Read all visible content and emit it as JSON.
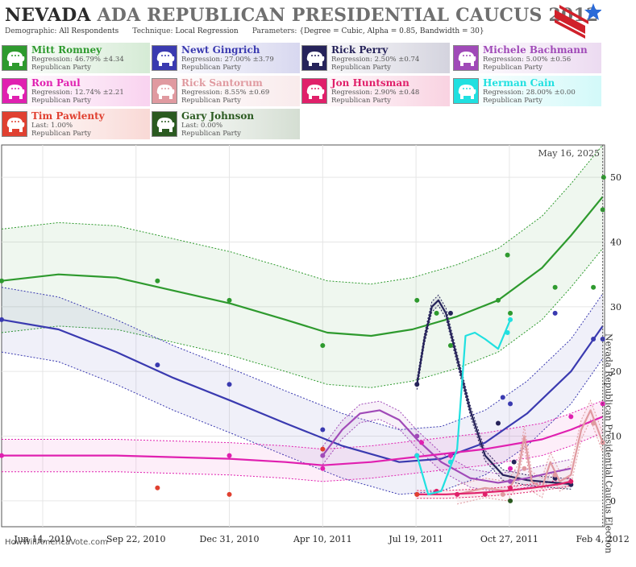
{
  "header": {
    "title_state": "NEVADA",
    "title_rest": "ADA REPUBLICAN PRESIDENTIAL CAUCUS 2012",
    "demographic_label": "Demographic:",
    "demographic_value": "All Respondents",
    "technique_label": "Technique:",
    "technique_value": "Local Regression",
    "parameters_label": "Parameters:",
    "parameters_value": "{Degree = Cubic, Alpha = 0.85, Bandwidth = 30}"
  },
  "candidates": [
    {
      "name": "Mitt Romney",
      "stat": "Regression: 46.79% ±4.34",
      "party": "Republican Party",
      "color": "#2e9a2e"
    },
    {
      "name": "Newt Gingrich",
      "stat": "Regression: 27.00% ±3.79",
      "party": "Republican Party",
      "color": "#3a3ab0"
    },
    {
      "name": "Rick Perry",
      "stat": "Regression: 2.50% ±0.74",
      "party": "Republican Party",
      "color": "#26235a"
    },
    {
      "name": "Michele Bachmann",
      "stat": "Regression: 5.00% ±0.56",
      "party": "Republican Party",
      "color": "#a04ab8"
    },
    {
      "name": "Ron Paul",
      "stat": "Regression: 12.74% ±2.21",
      "party": "Republican Party",
      "color": "#e020b0"
    },
    {
      "name": "Rick Santorum",
      "stat": "Regression: 8.55% ±0.69",
      "party": "Republican Party",
      "color": "#e09aa0"
    },
    {
      "name": "Jon Huntsman",
      "stat": "Regression: 2.90% ±0.48",
      "party": "Republican Party",
      "color": "#e0206a"
    },
    {
      "name": "Herman Cain",
      "stat": "Regression: 28.00% ±0.00",
      "party": "Republican Party",
      "color": "#20e0e0"
    },
    {
      "name": "Tim Pawlenty",
      "stat": "Last: 1.00%",
      "party": "Republican Party",
      "color": "#e04030"
    },
    {
      "name": "Gary Johnson",
      "stat": "Last: 0.00%",
      "party": "Republican Party",
      "color": "#2a5a20"
    }
  ],
  "watermark": "HowWillAmericaVote.com",
  "chart_data": {
    "type": "line",
    "today_label": "May 16, 2025",
    "event_label": "Nevada Republican Presidential Caucus Election",
    "event_date": "2012-02-04",
    "x_range": [
      "2010-05-01",
      "2012-02-06"
    ],
    "ylim": [
      -4,
      55
    ],
    "yticks": [
      0,
      10,
      20,
      30,
      40,
      50
    ],
    "xticks": [
      {
        "date": "2010-06-14",
        "label": "Jun 14, 2010"
      },
      {
        "date": "2010-09-22",
        "label": "Sep 22, 2010"
      },
      {
        "date": "2010-12-31",
        "label": "Dec 31, 2010"
      },
      {
        "date": "2011-04-10",
        "label": "Apr 10, 2011"
      },
      {
        "date": "2011-07-19",
        "label": "Jul 19, 2011"
      },
      {
        "date": "2011-10-27",
        "label": "Oct 27, 2011"
      },
      {
        "date": "2012-02-04",
        "label": "Feb 4, 2012"
      }
    ],
    "series": [
      {
        "name": "Mitt Romney",
        "color": "#2e9a2e",
        "band": 8,
        "line": [
          [
            "2010-05-01",
            34
          ],
          [
            "2010-07-01",
            35
          ],
          [
            "2010-09-01",
            34.5
          ],
          [
            "2010-11-01",
            32.5
          ],
          [
            "2011-01-01",
            30.5
          ],
          [
            "2011-03-01",
            28
          ],
          [
            "2011-04-15",
            26
          ],
          [
            "2011-06-01",
            25.5
          ],
          [
            "2011-07-15",
            26.5
          ],
          [
            "2011-09-01",
            28.5
          ],
          [
            "2011-10-15",
            31
          ],
          [
            "2011-12-01",
            36
          ],
          [
            "2012-01-01",
            41
          ],
          [
            "2012-02-04",
            47
          ]
        ],
        "points": [
          [
            "2010-05-01",
            34
          ],
          [
            "2010-10-15",
            34
          ],
          [
            "2010-12-31",
            31
          ],
          [
            "2011-04-10",
            24
          ],
          [
            "2011-07-20",
            31
          ],
          [
            "2011-08-10",
            29
          ],
          [
            "2011-08-25",
            24
          ],
          [
            "2011-10-15",
            31
          ],
          [
            "2011-10-25",
            38
          ],
          [
            "2011-10-28",
            29
          ],
          [
            "2011-12-15",
            33
          ],
          [
            "2012-01-25",
            33
          ],
          [
            "2012-02-04",
            45
          ],
          [
            "2012-02-05",
            50
          ]
        ]
      },
      {
        "name": "Newt Gingrich",
        "color": "#3a3ab0",
        "band": 5,
        "line": [
          [
            "2010-05-01",
            28
          ],
          [
            "2010-07-01",
            26.5
          ],
          [
            "2010-09-01",
            23
          ],
          [
            "2010-11-01",
            19
          ],
          [
            "2011-01-01",
            15.5
          ],
          [
            "2011-03-01",
            12
          ],
          [
            "2011-05-01",
            8.5
          ],
          [
            "2011-07-01",
            6
          ],
          [
            "2011-08-15",
            6.5
          ],
          [
            "2011-10-01",
            9
          ],
          [
            "2011-11-15",
            13.5
          ],
          [
            "2012-01-01",
            20
          ],
          [
            "2012-02-04",
            27
          ]
        ],
        "points": [
          [
            "2010-05-01",
            28
          ],
          [
            "2010-10-15",
            21
          ],
          [
            "2010-12-31",
            18
          ],
          [
            "2011-04-10",
            11
          ],
          [
            "2011-07-20",
            7
          ],
          [
            "2011-10-20",
            16
          ],
          [
            "2011-10-28",
            15
          ],
          [
            "2011-12-15",
            29
          ],
          [
            "2012-01-25",
            25
          ],
          [
            "2012-02-04",
            25
          ]
        ]
      },
      {
        "name": "Rick Perry",
        "color": "#26235a",
        "band": 0.8,
        "line": [
          [
            "2011-07-20",
            18
          ],
          [
            "2011-07-28",
            25
          ],
          [
            "2011-08-05",
            30
          ],
          [
            "2011-08-12",
            31
          ],
          [
            "2011-08-20",
            29
          ],
          [
            "2011-09-01",
            22
          ],
          [
            "2011-09-15",
            14
          ],
          [
            "2011-10-01",
            7
          ],
          [
            "2011-10-20",
            4
          ],
          [
            "2011-11-15",
            3.2
          ],
          [
            "2011-12-15",
            2.8
          ],
          [
            "2012-01-01",
            2.6
          ]
        ],
        "points": [
          [
            "2011-07-20",
            18
          ],
          [
            "2011-08-25",
            29
          ],
          [
            "2011-10-15",
            12
          ],
          [
            "2011-11-01",
            6
          ],
          [
            "2011-12-15",
            3.5
          ],
          [
            "2012-01-01",
            2.5
          ]
        ]
      },
      {
        "name": "Michele Bachmann",
        "color": "#a04ab8",
        "band": 1.4,
        "line": [
          [
            "2011-04-10",
            7
          ],
          [
            "2011-05-01",
            11
          ],
          [
            "2011-05-20",
            13.5
          ],
          [
            "2011-06-10",
            14
          ],
          [
            "2011-07-01",
            12.5
          ],
          [
            "2011-07-20",
            9.5
          ],
          [
            "2011-08-15",
            6
          ],
          [
            "2011-09-15",
            3.5
          ],
          [
            "2011-10-15",
            2.8
          ],
          [
            "2011-11-15",
            3.5
          ],
          [
            "2011-12-15",
            4.5
          ],
          [
            "2012-01-01",
            5
          ]
        ],
        "points": [
          [
            "2011-04-10",
            7
          ],
          [
            "2011-07-20",
            10
          ],
          [
            "2011-08-25",
            6
          ],
          [
            "2011-10-28",
            3
          ],
          [
            "2011-12-15",
            4
          ]
        ]
      },
      {
        "name": "Ron Paul",
        "color": "#e020b0",
        "band": 2.5,
        "line": [
          [
            "2010-05-01",
            7
          ],
          [
            "2010-09-01",
            7
          ],
          [
            "2010-12-31",
            6.5
          ],
          [
            "2011-03-01",
            6
          ],
          [
            "2011-04-10",
            5.5
          ],
          [
            "2011-06-01",
            6
          ],
          [
            "2011-08-01",
            7
          ],
          [
            "2011-10-01",
            8
          ],
          [
            "2011-12-01",
            9.5
          ],
          [
            "2012-01-01",
            11
          ],
          [
            "2012-02-04",
            13
          ]
        ],
        "points": [
          [
            "2010-05-01",
            7
          ],
          [
            "2010-12-31",
            7
          ],
          [
            "2011-04-10",
            5
          ],
          [
            "2011-07-20",
            7
          ],
          [
            "2011-07-25",
            9
          ],
          [
            "2011-08-25",
            7
          ],
          [
            "2011-10-28",
            5
          ],
          [
            "2012-01-01",
            13
          ],
          [
            "2012-02-04",
            15
          ]
        ]
      },
      {
        "name": "Rick Santorum",
        "color": "#e09aa0",
        "band": 1.5,
        "line": [
          [
            "2011-09-01",
            1
          ],
          [
            "2011-10-01",
            2
          ],
          [
            "2011-10-25",
            1.5
          ],
          [
            "2011-11-05",
            4
          ],
          [
            "2011-11-12",
            10
          ],
          [
            "2011-11-20",
            3
          ],
          [
            "2011-12-01",
            2
          ],
          [
            "2011-12-10",
            6
          ],
          [
            "2011-12-20",
            3
          ],
          [
            "2012-01-01",
            4
          ],
          [
            "2012-01-12",
            11
          ],
          [
            "2012-01-22",
            14
          ],
          [
            "2012-02-04",
            9
          ]
        ],
        "points": [
          [
            "2011-09-01",
            1
          ],
          [
            "2011-10-20",
            1
          ],
          [
            "2011-11-12",
            5
          ],
          [
            "2011-12-15",
            4
          ],
          [
            "2012-01-25",
            12
          ],
          [
            "2012-02-04",
            9
          ]
        ]
      },
      {
        "name": "Jon Huntsman",
        "color": "#e0206a",
        "band": 0.6,
        "line": [
          [
            "2011-07-20",
            1
          ],
          [
            "2011-08-20",
            1
          ],
          [
            "2011-09-20",
            1.2
          ],
          [
            "2011-10-20",
            1.5
          ],
          [
            "2011-11-20",
            2
          ],
          [
            "2011-12-20",
            2.6
          ],
          [
            "2012-01-01",
            3
          ]
        ],
        "points": [
          [
            "2011-07-20",
            1
          ],
          [
            "2011-08-10",
            1.5
          ],
          [
            "2011-09-01",
            1
          ],
          [
            "2011-10-01",
            1
          ],
          [
            "2011-10-28",
            2
          ],
          [
            "2012-01-01",
            3
          ]
        ]
      },
      {
        "name": "Herman Cain",
        "color": "#20e0e0",
        "band": 0,
        "line": [
          [
            "2011-07-20",
            7
          ],
          [
            "2011-08-01",
            1
          ],
          [
            "2011-08-15",
            1.5
          ],
          [
            "2011-09-01",
            8
          ],
          [
            "2011-09-10",
            25.5
          ],
          [
            "2011-09-20",
            26
          ],
          [
            "2011-10-01",
            25
          ],
          [
            "2011-10-15",
            23.5
          ],
          [
            "2011-10-28",
            28
          ]
        ],
        "points": [
          [
            "2011-07-20",
            7
          ],
          [
            "2011-08-25",
            6
          ],
          [
            "2011-10-25",
            26
          ],
          [
            "2011-10-28",
            28
          ]
        ]
      },
      {
        "name": "Tim Pawlenty",
        "color": "#e04030",
        "band": 0,
        "line": [],
        "points": [
          [
            "2010-10-15",
            2
          ],
          [
            "2010-12-31",
            1
          ],
          [
            "2011-04-10",
            8
          ],
          [
            "2011-07-20",
            1
          ]
        ]
      },
      {
        "name": "Gary Johnson",
        "color": "#2a5a20",
        "band": 0,
        "line": [],
        "points": [
          [
            "2011-10-28",
            0
          ]
        ]
      }
    ]
  }
}
